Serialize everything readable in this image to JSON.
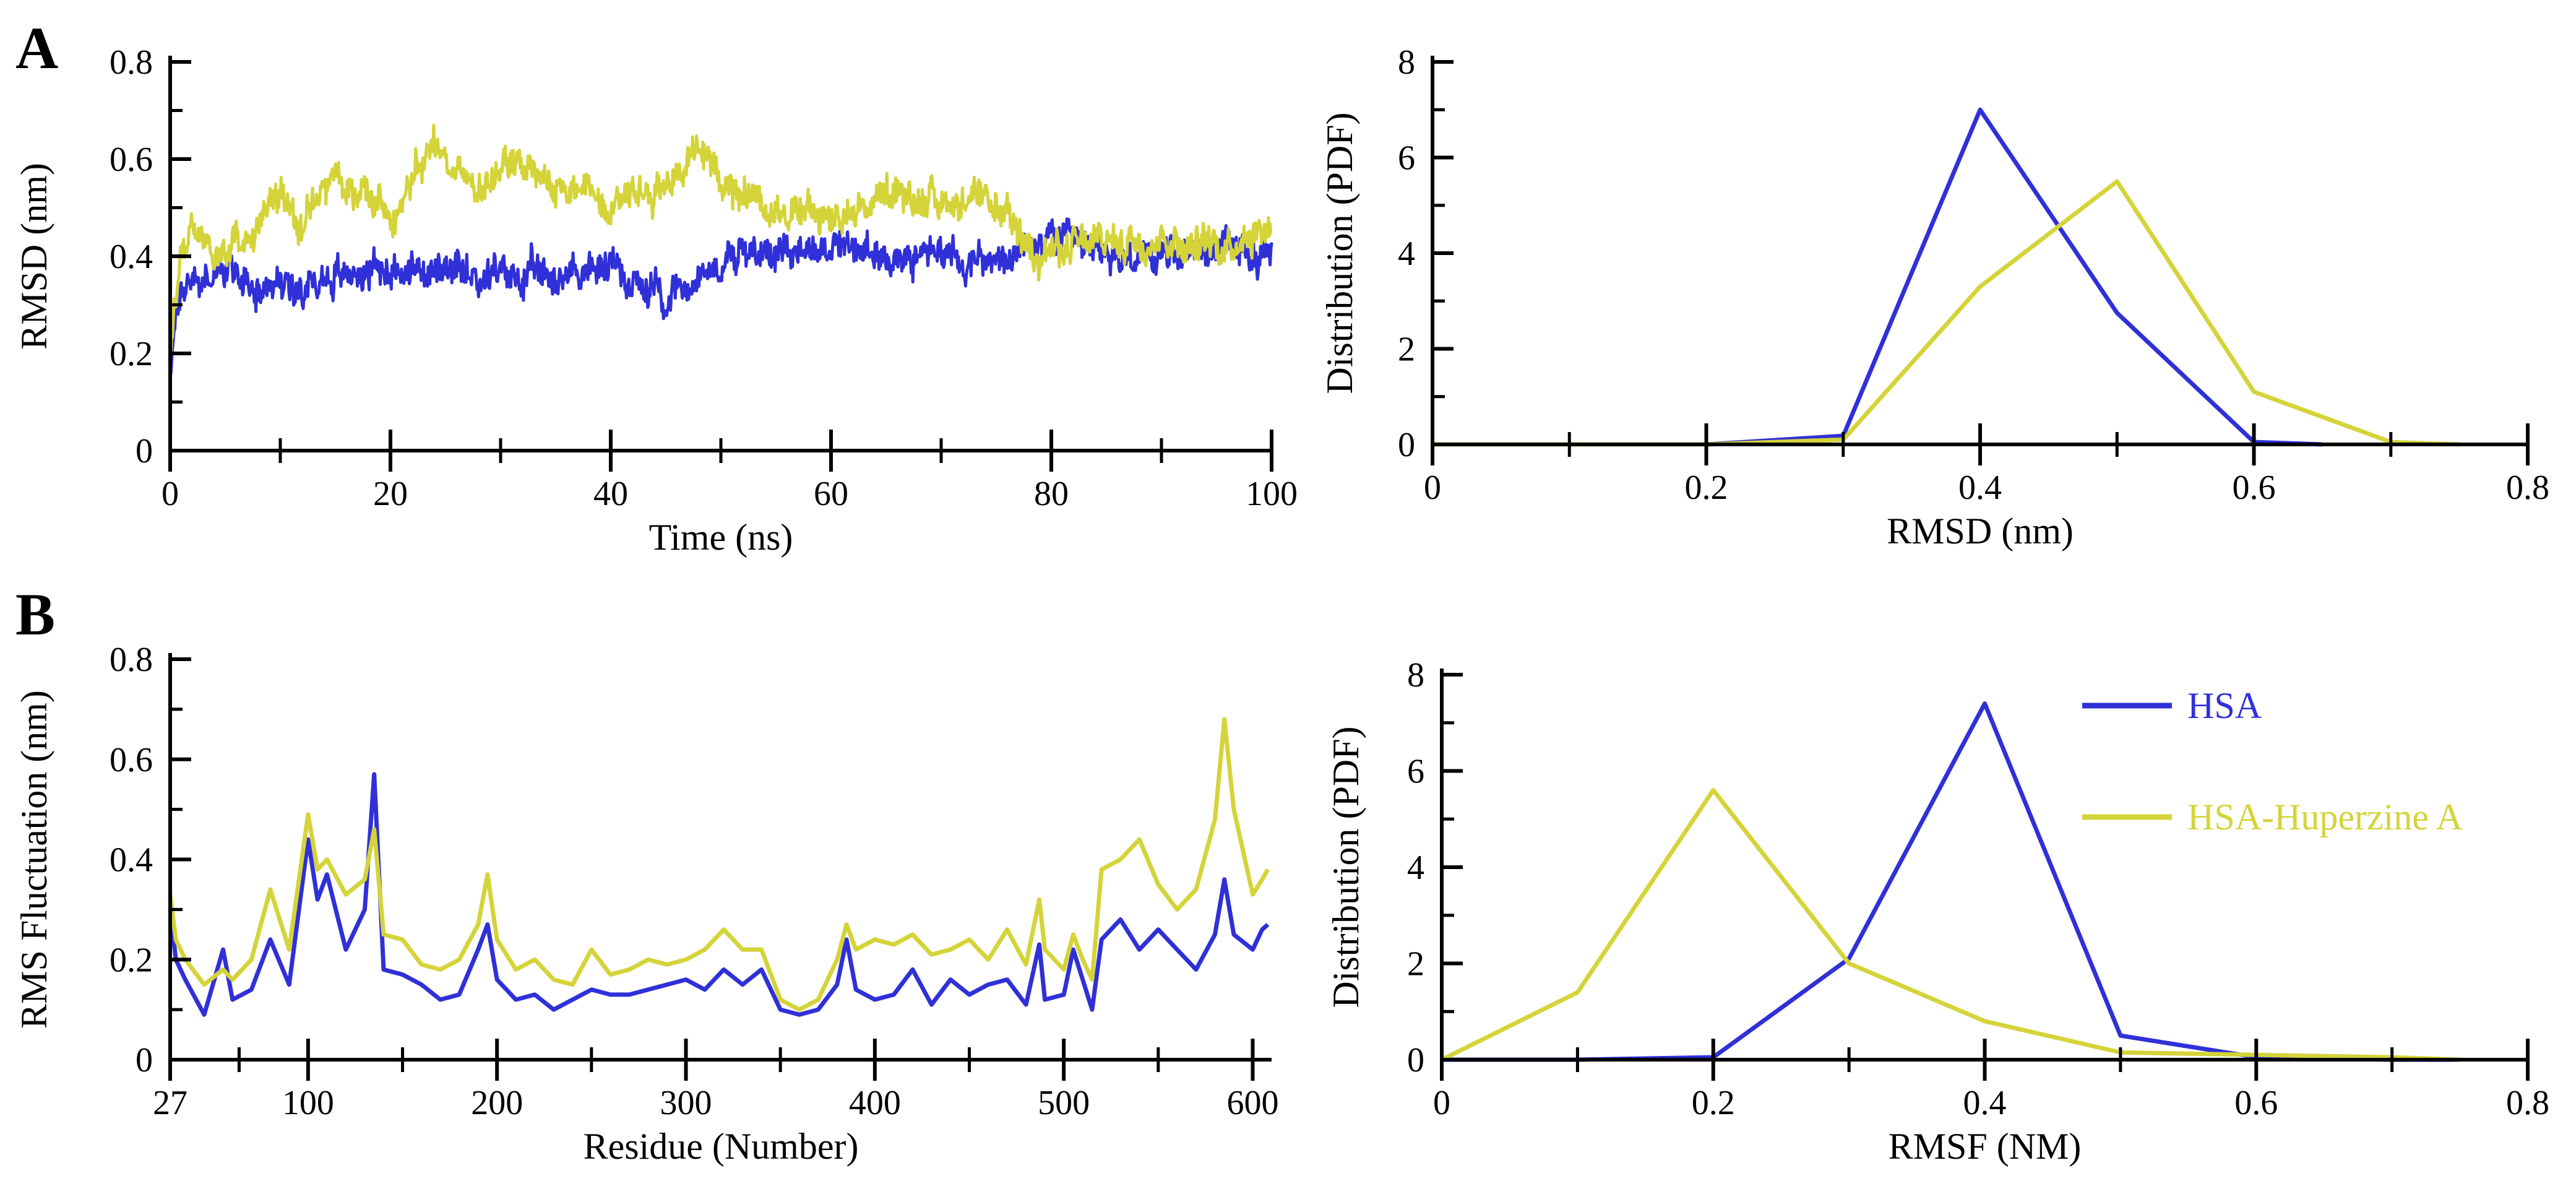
{
  "figure": {
    "panel_a_letter": "A",
    "panel_b_letter": "B"
  },
  "colors": {
    "hsa": "#3030d8",
    "hsa_huperzine": "#d4d43a",
    "axis": "#000000"
  },
  "legend": {
    "items": [
      {
        "label": "HSA",
        "color": "#3030d8"
      },
      {
        "label": "HSA-Huperzine A",
        "color": "#d4d43a"
      }
    ]
  },
  "chart_data": [
    {
      "id": "rmsd_time",
      "type": "line",
      "xlabel": "Time (ns)",
      "ylabel": "RMSD (nm)",
      "xlim": [
        0,
        100
      ],
      "ylim": [
        0,
        0.8
      ],
      "xticks": [
        0,
        20,
        40,
        60,
        80,
        100
      ],
      "xtick_labels": [
        "0",
        "20",
        "40",
        "60",
        "80",
        "100"
      ],
      "yticks": [
        0,
        0.2,
        0.4,
        0.6,
        0.8
      ],
      "ytick_labels": [
        "0",
        "0.2",
        "0.4",
        "0.6",
        "0.8"
      ],
      "noisy": true,
      "series": [
        {
          "name": "HSA",
          "x": [
            0,
            0.5,
            1,
            2,
            3,
            5,
            8,
            10,
            15,
            20,
            25,
            30,
            35,
            40,
            43,
            45,
            48,
            50,
            55,
            60,
            65,
            70,
            75,
            80,
            85,
            90,
            95,
            100
          ],
          "values": [
            0.15,
            0.27,
            0.33,
            0.36,
            0.35,
            0.37,
            0.34,
            0.34,
            0.36,
            0.38,
            0.36,
            0.36,
            0.36,
            0.38,
            0.34,
            0.32,
            0.36,
            0.39,
            0.42,
            0.42,
            0.4,
            0.41,
            0.38,
            0.44,
            0.4,
            0.4,
            0.42,
            0.4
          ]
        },
        {
          "name": "HSA-Huperzine A",
          "x": [
            0,
            0.5,
            1,
            2,
            5,
            8,
            10,
            12,
            15,
            18,
            20,
            24,
            25,
            28,
            30,
            35,
            40,
            45,
            48,
            50,
            55,
            60,
            65,
            70,
            75,
            78,
            80,
            85,
            90,
            95,
            100
          ],
          "values": [
            0.22,
            0.32,
            0.4,
            0.44,
            0.42,
            0.45,
            0.53,
            0.46,
            0.57,
            0.52,
            0.49,
            0.63,
            0.6,
            0.53,
            0.6,
            0.54,
            0.52,
            0.55,
            0.62,
            0.56,
            0.5,
            0.48,
            0.52,
            0.52,
            0.5,
            0.42,
            0.41,
            0.43,
            0.44,
            0.42,
            0.47
          ]
        }
      ]
    },
    {
      "id": "rmsd_dist",
      "type": "line",
      "xlabel": "RMSD (nm)",
      "ylabel": "Distribution (PDF)",
      "xlim": [
        0,
        0.8
      ],
      "ylim": [
        0,
        8
      ],
      "xticks": [
        0,
        0.2,
        0.4,
        0.6,
        0.8
      ],
      "xtick_labels": [
        "0",
        "0.2",
        "0.4",
        "0.6",
        "0.8"
      ],
      "yticks": [
        0,
        2,
        4,
        6,
        8
      ],
      "ytick_labels": [
        "0",
        "2",
        "4",
        "6",
        "8"
      ],
      "series": [
        {
          "name": "HSA",
          "x": [
            0,
            0.1,
            0.2,
            0.3,
            0.4,
            0.5,
            0.6,
            0.65
          ],
          "values": [
            0,
            0,
            0,
            0.18,
            7.0,
            2.75,
            0.05,
            0
          ]
        },
        {
          "name": "HSA-Huperzine A",
          "x": [
            0,
            0.1,
            0.2,
            0.3,
            0.4,
            0.5,
            0.6,
            0.7,
            0.75
          ],
          "values": [
            0,
            0,
            0,
            0.1,
            3.3,
            5.5,
            1.1,
            0.05,
            0
          ]
        }
      ]
    },
    {
      "id": "rmsf_residue",
      "type": "line",
      "xlabel": "Residue (Number)",
      "ylabel": "RMS Fluctuation (nm)",
      "xlim": [
        27,
        610
      ],
      "ylim": [
        0,
        0.8
      ],
      "xticks": [
        27,
        100,
        200,
        300,
        400,
        500,
        600
      ],
      "xtick_labels": [
        "27",
        "100",
        "200",
        "300",
        "400",
        "500",
        "600"
      ],
      "yticks": [
        0,
        0.2,
        0.4,
        0.6,
        0.8
      ],
      "ytick_labels": [
        "0",
        "0.2",
        "0.4",
        "0.6",
        "0.8"
      ],
      "series": [
        {
          "name": "HSA",
          "x": [
            27,
            30,
            35,
            45,
            55,
            60,
            70,
            80,
            90,
            100,
            105,
            110,
            120,
            130,
            135,
            140,
            150,
            160,
            170,
            180,
            190,
            195,
            200,
            210,
            220,
            230,
            240,
            250,
            260,
            270,
            280,
            290,
            300,
            310,
            320,
            330,
            340,
            350,
            360,
            370,
            380,
            385,
            390,
            400,
            410,
            420,
            430,
            440,
            450,
            460,
            470,
            480,
            487,
            490,
            500,
            505,
            510,
            515,
            520,
            530,
            540,
            550,
            560,
            570,
            580,
            585,
            590,
            600,
            605,
            608
          ],
          "values": [
            0.3,
            0.2,
            0.16,
            0.09,
            0.22,
            0.12,
            0.14,
            0.24,
            0.15,
            0.44,
            0.32,
            0.37,
            0.22,
            0.3,
            0.57,
            0.18,
            0.17,
            0.15,
            0.12,
            0.13,
            0.22,
            0.27,
            0.16,
            0.12,
            0.13,
            0.1,
            0.12,
            0.14,
            0.13,
            0.13,
            0.14,
            0.15,
            0.16,
            0.14,
            0.18,
            0.15,
            0.18,
            0.1,
            0.09,
            0.1,
            0.15,
            0.24,
            0.14,
            0.12,
            0.13,
            0.18,
            0.11,
            0.16,
            0.13,
            0.15,
            0.16,
            0.11,
            0.23,
            0.12,
            0.13,
            0.22,
            0.16,
            0.1,
            0.24,
            0.28,
            0.22,
            0.26,
            0.22,
            0.18,
            0.25,
            0.36,
            0.25,
            0.22,
            0.26,
            0.27
          ]
        },
        {
          "name": "HSA-Huperzine A",
          "x": [
            27,
            30,
            35,
            45,
            55,
            60,
            70,
            80,
            90,
            100,
            105,
            110,
            120,
            130,
            135,
            140,
            150,
            160,
            170,
            180,
            190,
            195,
            200,
            210,
            220,
            230,
            240,
            250,
            260,
            270,
            280,
            290,
            300,
            310,
            320,
            330,
            340,
            350,
            360,
            370,
            380,
            385,
            390,
            400,
            410,
            420,
            430,
            440,
            450,
            460,
            470,
            480,
            487,
            490,
            500,
            505,
            510,
            515,
            520,
            530,
            540,
            550,
            560,
            570,
            580,
            585,
            590,
            600,
            605,
            608
          ],
          "values": [
            0.33,
            0.24,
            0.2,
            0.15,
            0.18,
            0.16,
            0.2,
            0.34,
            0.22,
            0.49,
            0.38,
            0.4,
            0.33,
            0.36,
            0.46,
            0.25,
            0.24,
            0.19,
            0.18,
            0.2,
            0.27,
            0.37,
            0.24,
            0.18,
            0.2,
            0.16,
            0.15,
            0.22,
            0.17,
            0.18,
            0.2,
            0.19,
            0.2,
            0.22,
            0.26,
            0.22,
            0.22,
            0.12,
            0.1,
            0.12,
            0.2,
            0.27,
            0.22,
            0.24,
            0.23,
            0.25,
            0.21,
            0.22,
            0.24,
            0.2,
            0.26,
            0.19,
            0.32,
            0.22,
            0.18,
            0.25,
            0.2,
            0.16,
            0.38,
            0.4,
            0.44,
            0.35,
            0.3,
            0.34,
            0.48,
            0.68,
            0.5,
            0.33,
            0.36,
            0.38
          ]
        }
      ]
    },
    {
      "id": "rmsf_dist",
      "type": "line",
      "xlabel": "RMSF (NM)",
      "ylabel": "Distribution (PDF)",
      "xlim": [
        0,
        0.8
      ],
      "ylim": [
        0,
        8
      ],
      "xticks": [
        0,
        0.2,
        0.4,
        0.6,
        0.8
      ],
      "xtick_labels": [
        "0",
        "0.2",
        "0.4",
        "0.6",
        "0.8"
      ],
      "yticks": [
        0,
        2,
        4,
        6,
        8
      ],
      "ytick_labels": [
        "0",
        "2",
        "4",
        "6",
        "8"
      ],
      "series": [
        {
          "name": "HSA",
          "x": [
            0,
            0.1,
            0.2,
            0.3,
            0.4,
            0.5,
            0.6,
            0.7,
            0.75
          ],
          "values": [
            0,
            0,
            0.05,
            2.1,
            7.4,
            0.5,
            0.05,
            0,
            0
          ]
        },
        {
          "name": "HSA-Huperzine A",
          "x": [
            0,
            0.1,
            0.2,
            0.3,
            0.4,
            0.5,
            0.6,
            0.7,
            0.75
          ],
          "values": [
            0,
            1.4,
            5.6,
            2.0,
            0.8,
            0.15,
            0.1,
            0.05,
            0
          ]
        }
      ]
    }
  ]
}
